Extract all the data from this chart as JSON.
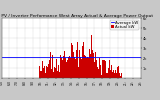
{
  "title": "Solar PV / Inverter Performance West Array Actual & Average Power Output",
  "legend_actual": "Actual kW",
  "legend_average": "Average kW",
  "bg_color": "#c8c8c8",
  "plot_bg_color": "#ffffff",
  "bar_color": "#cc0000",
  "avg_line_color": "#0000ff",
  "grid_color": "#888888",
  "ylim": [
    0,
    6000
  ],
  "yticks": [
    1000,
    2000,
    3000,
    4000,
    5000,
    6000
  ],
  "ytick_labels": [
    "1k",
    "2k",
    "3k",
    "4k",
    "5k",
    "6k"
  ],
  "avg_value": 2100,
  "num_points": 288,
  "title_fontsize": 3.2,
  "tick_fontsize": 2.5,
  "legend_fontsize": 2.8,
  "text_color": "#000000",
  "spine_color": "#444444",
  "right_yaxis": true,
  "xtick_labels": [
    "5:0",
    "6:0",
    "7:0",
    "8:0",
    "9:0",
    "10:",
    "11:",
    "12:",
    "13:",
    "14:",
    "15:",
    "16:",
    "17:",
    "18:",
    "19:",
    "20:",
    "21:",
    "22:",
    "23:"
  ],
  "legend_loc": "upper right"
}
